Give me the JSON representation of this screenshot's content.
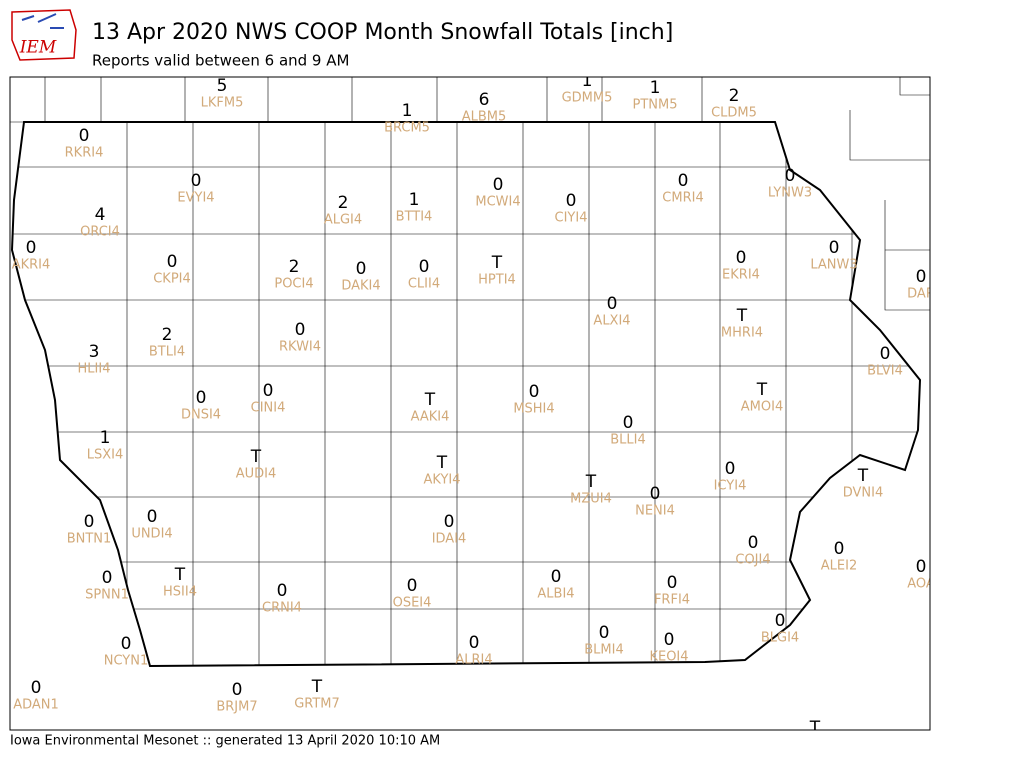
{
  "header": {
    "logo": "IEM",
    "title": "13 Apr 2020 NWS COOP Month Snowfall Totals [inch]",
    "subtitle": "Reports valid between 6 and 9 AM"
  },
  "stations": [
    {
      "value": 5,
      "id": "LKFM5"
    },
    {
      "value": 1,
      "id": "BRCM5"
    },
    {
      "value": 6,
      "id": "ALBM5"
    },
    {
      "value": 1,
      "id": "GDMM5"
    },
    {
      "value": 1,
      "id": "PTNM5"
    },
    {
      "value": 2,
      "id": "CLDM5"
    },
    {
      "value": 0,
      "id": "RKRI4"
    },
    {
      "value": 0,
      "id": "EVYI4"
    },
    {
      "value": 4,
      "id": "ORCI4"
    },
    {
      "value": 2,
      "id": "ALGI4"
    },
    {
      "value": 1,
      "id": "BTTI4"
    },
    {
      "value": 0,
      "id": "MCWI4"
    },
    {
      "value": 0,
      "id": "CIYI4"
    },
    {
      "value": 0,
      "id": "CMRI4"
    },
    {
      "value": 0,
      "id": "LYNW3"
    },
    {
      "value": 0,
      "id": "AKRI4"
    },
    {
      "value": 0,
      "id": "CKPI4"
    },
    {
      "value": 2,
      "id": "POCI4"
    },
    {
      "value": 0,
      "id": "DAKI4"
    },
    {
      "value": 0,
      "id": "CLII4"
    },
    {
      "value": "T",
      "id": "HPTI4"
    },
    {
      "value": 0,
      "id": "EKRI4"
    },
    {
      "value": 0,
      "id": "LANW3"
    },
    {
      "value": 0,
      "id": "DAR"
    },
    {
      "value": 0,
      "id": "ALXI4"
    },
    {
      "value": "T",
      "id": "MHRI4"
    },
    {
      "value": 2,
      "id": "BTLI4"
    },
    {
      "value": 0,
      "id": "RKWI4"
    },
    {
      "value": 3,
      "id": "HLII4"
    },
    {
      "value": 0,
      "id": "BLVI4"
    },
    {
      "value": 0,
      "id": "DNSI4"
    },
    {
      "value": 0,
      "id": "CINI4"
    },
    {
      "value": "T",
      "id": "AAKI4"
    },
    {
      "value": 0,
      "id": "MSHI4"
    },
    {
      "value": "T",
      "id": "AMOI4"
    },
    {
      "value": 0,
      "id": "BLLI4"
    },
    {
      "value": 1,
      "id": "LSXI4"
    },
    {
      "value": "T",
      "id": "AUDI4"
    },
    {
      "value": "T",
      "id": "AKYI4"
    },
    {
      "value": 0,
      "id": "ICYI4"
    },
    {
      "value": "T",
      "id": "DVNI4"
    },
    {
      "value": "T",
      "id": "MZUI4"
    },
    {
      "value": 0,
      "id": "NENI4"
    },
    {
      "value": 0,
      "id": "UNDI4"
    },
    {
      "value": 0,
      "id": "BNTN1"
    },
    {
      "value": 0,
      "id": "IDAI4"
    },
    {
      "value": 0,
      "id": "COJI4"
    },
    {
      "value": 0,
      "id": "ALEI2"
    },
    {
      "value": 0,
      "id": "AOA"
    },
    {
      "value": 0,
      "id": "SPNN1"
    },
    {
      "value": "T",
      "id": "HSII4"
    },
    {
      "value": 0,
      "id": "CRNI4"
    },
    {
      "value": 0,
      "id": "OSEI4"
    },
    {
      "value": 0,
      "id": "ALBI4"
    },
    {
      "value": 0,
      "id": "FRFI4"
    },
    {
      "value": 0,
      "id": "BLGI4"
    },
    {
      "value": 0,
      "id": "NCYN1"
    },
    {
      "value": 0,
      "id": "ALRI4"
    },
    {
      "value": 0,
      "id": "BLMI4"
    },
    {
      "value": 0,
      "id": "KEOI4"
    },
    {
      "value": 0,
      "id": "ADAN1"
    },
    {
      "value": 0,
      "id": "BRJM7"
    },
    {
      "value": "T",
      "id": "GRTM7"
    },
    {
      "value": "T"
    }
  ],
  "footer": "Iowa Environmental Mesonet :: generated 13 April 2020 10:10 AM"
}
